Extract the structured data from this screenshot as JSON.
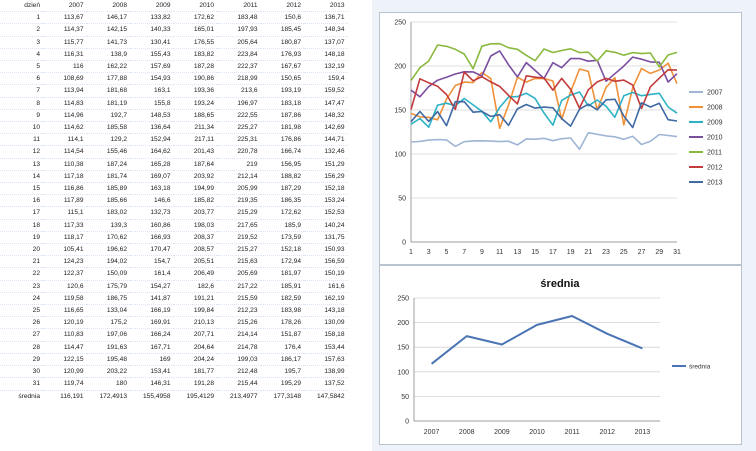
{
  "table": {
    "header": [
      "dzień",
      "2007",
      "2008",
      "2009",
      "2010",
      "2011",
      "2012",
      "2013"
    ],
    "rows": [
      [
        "1",
        "113,67",
        "146,17",
        "133,82",
        "172,62",
        "183,48",
        "150,6",
        "136,71"
      ],
      [
        "2",
        "114,37",
        "142,15",
        "140,33",
        "165,01",
        "197,93",
        "185,45",
        "148,34"
      ],
      [
        "3",
        "115,77",
        "141,73",
        "130,41",
        "176,55",
        "205,64",
        "180,87",
        "137,07"
      ],
      [
        "4",
        "116,31",
        "138,9",
        "155,43",
        "183,82",
        "223,84",
        "176,93",
        "148,18"
      ],
      [
        "5",
        "116",
        "162,22",
        "157,69",
        "187,28",
        "222,37",
        "167,67",
        "132,19"
      ],
      [
        "6",
        "108,69",
        "177,88",
        "154,93",
        "190,86",
        "218,99",
        "150,65",
        "159,4"
      ],
      [
        "7",
        "113,94",
        "181,68",
        "163,1",
        "193,36",
        "213,6",
        "193,19",
        "159,52"
      ],
      [
        "8",
        "114,83",
        "181,19",
        "155,8",
        "193,24",
        "196,97",
        "183,18",
        "147,47"
      ],
      [
        "9",
        "114,96",
        "192,7",
        "148,53",
        "188,65",
        "222,55",
        "187,86",
        "148,32"
      ],
      [
        "10",
        "114,62",
        "185,58",
        "136,64",
        "211,34",
        "225,27",
        "181,98",
        "142,69"
      ],
      [
        "11",
        "114,1",
        "129,2",
        "152,94",
        "217,11",
        "225,31",
        "176,86",
        "144,71"
      ],
      [
        "12",
        "114,54",
        "155,46",
        "164,62",
        "201,43",
        "220,78",
        "166,74",
        "132,46"
      ],
      [
        "13",
        "110,38",
        "187,24",
        "165,28",
        "187,64",
        "219",
        "156,95",
        "151,29"
      ],
      [
        "14",
        "117,18",
        "181,74",
        "169,07",
        "203,92",
        "212,14",
        "188,82",
        "156,29"
      ],
      [
        "15",
        "116,86",
        "185,89",
        "163,18",
        "194,99",
        "205,99",
        "187,29",
        "152,18"
      ],
      [
        "16",
        "117,89",
        "185,66",
        "146,6",
        "185,82",
        "219,35",
        "186,35",
        "153,24"
      ],
      [
        "17",
        "115,1",
        "183,02",
        "132,73",
        "203,77",
        "215,29",
        "172,62",
        "152,53"
      ],
      [
        "18",
        "117,33",
        "139,3",
        "160,86",
        "198,03",
        "217,65",
        "185,9",
        "140,24"
      ],
      [
        "19",
        "118,17",
        "170,62",
        "166,93",
        "208,37",
        "219,52",
        "173,59",
        "131,75"
      ],
      [
        "20",
        "105,41",
        "196,62",
        "170,47",
        "208,57",
        "215,27",
        "152,18",
        "150,93"
      ],
      [
        "21",
        "124,23",
        "194,02",
        "154,7",
        "205,51",
        "215,63",
        "172,94",
        "156,59"
      ],
      [
        "22",
        "122,37",
        "150,09",
        "161,4",
        "206,49",
        "205,69",
        "181,97",
        "150,19"
      ],
      [
        "23",
        "120,6",
        "175,79",
        "154,27",
        "182,6",
        "217,22",
        "185,91",
        "161,6"
      ],
      [
        "24",
        "119,58",
        "186,75",
        "141,87",
        "191,21",
        "215,59",
        "182,59",
        "162,19"
      ],
      [
        "25",
        "116,65",
        "133,04",
        "166,19",
        "199,84",
        "212,23",
        "183,98",
        "143,18"
      ],
      [
        "26",
        "120,19",
        "175,2",
        "169,91",
        "210,13",
        "215,26",
        "178,26",
        "130,09"
      ],
      [
        "27",
        "110,83",
        "197,06",
        "166,24",
        "207,71",
        "214,14",
        "151,87",
        "158,18"
      ],
      [
        "28",
        "114,47",
        "191,63",
        "167,71",
        "204,64",
        "214,78",
        "176,4",
        "153,44"
      ],
      [
        "29",
        "122,15",
        "195,48",
        "169",
        "204,24",
        "199,03",
        "186,17",
        "157,63"
      ],
      [
        "30",
        "120,99",
        "203,22",
        "153,41",
        "181,77",
        "212,48",
        "195,7",
        "138,99"
      ],
      [
        "31",
        "119,74",
        "180",
        "146,31",
        "191,28",
        "215,44",
        "195,29",
        "137,52"
      ]
    ],
    "average": [
      "średnia",
      "116,191",
      "172,4913",
      "155,4958",
      "195,4129",
      "213,4977",
      "177,3148",
      "147,5842"
    ]
  },
  "chart_data": [
    {
      "type": "line",
      "x": [
        1,
        2,
        3,
        4,
        5,
        6,
        7,
        8,
        9,
        10,
        11,
        12,
        13,
        14,
        15,
        16,
        17,
        18,
        19,
        20,
        21,
        22,
        23,
        24,
        25,
        26,
        27,
        28,
        29,
        30,
        31
      ],
      "x_tick_labels": [
        "1",
        "3",
        "5",
        "7",
        "9",
        "11",
        "13",
        "15",
        "17",
        "19",
        "21",
        "23",
        "25",
        "27",
        "29",
        "31"
      ],
      "ylim": [
        0,
        250
      ],
      "y_ticks": [
        "0",
        "50",
        "100",
        "150",
        "200",
        "250"
      ],
      "grid": true,
      "legend_position": "right",
      "series": [
        {
          "name": "2007",
          "color": "#9fb5d4",
          "values": [
            113.67,
            114.37,
            115.77,
            116.31,
            116,
            108.69,
            113.94,
            114.83,
            114.96,
            114.62,
            114.1,
            114.54,
            110.38,
            117.18,
            116.86,
            117.89,
            115.1,
            117.33,
            118.17,
            105.41,
            124.23,
            122.37,
            120.6,
            119.58,
            116.65,
            120.19,
            110.83,
            114.47,
            122.15,
            120.99,
            119.74
          ]
        },
        {
          "name": "2008",
          "color": "#f0913a",
          "values": [
            146.17,
            142.15,
            141.73,
            138.9,
            162.22,
            177.88,
            181.68,
            181.19,
            192.7,
            185.58,
            129.2,
            155.46,
            187.24,
            181.74,
            185.89,
            185.66,
            183.02,
            139.3,
            170.62,
            196.62,
            194.02,
            150.09,
            175.79,
            186.75,
            133.04,
            175.2,
            197.06,
            191.63,
            195.48,
            203.22,
            180
          ]
        },
        {
          "name": "2009",
          "color": "#2eb3c6",
          "values": [
            133.82,
            140.33,
            130.41,
            155.43,
            157.69,
            154.93,
            163.1,
            155.8,
            148.53,
            136.64,
            152.94,
            164.62,
            165.28,
            169.07,
            163.18,
            146.6,
            132.73,
            160.86,
            166.93,
            170.47,
            154.7,
            161.4,
            154.27,
            141.87,
            166.19,
            169.91,
            166.24,
            167.71,
            169,
            153.41,
            146.31
          ]
        },
        {
          "name": "2010",
          "color": "#7b4fa0",
          "values": [
            172.62,
            165.01,
            176.55,
            183.82,
            187.28,
            190.86,
            193.36,
            193.24,
            188.65,
            211.34,
            217.11,
            201.43,
            187.64,
            203.92,
            194.99,
            185.82,
            203.77,
            198.03,
            208.37,
            208.57,
            205.51,
            206.49,
            182.6,
            191.21,
            199.84,
            210.13,
            207.71,
            204.64,
            204.24,
            181.77,
            191.28
          ]
        },
        {
          "name": "2011",
          "color": "#8ab93e",
          "values": [
            183.48,
            197.93,
            205.64,
            223.84,
            222.37,
            218.99,
            213.6,
            196.97,
            222.55,
            225.27,
            225.31,
            220.78,
            219,
            212.14,
            205.99,
            219.35,
            215.29,
            217.65,
            219.52,
            215.27,
            215.63,
            205.69,
            217.22,
            215.59,
            212.23,
            215.26,
            214.14,
            214.78,
            199.03,
            212.48,
            215.44
          ]
        },
        {
          "name": "2012",
          "color": "#c33b3b",
          "values": [
            150.6,
            185.45,
            180.87,
            176.93,
            167.67,
            150.65,
            193.19,
            183.18,
            187.86,
            181.98,
            176.86,
            166.74,
            156.95,
            188.82,
            187.29,
            186.35,
            172.62,
            185.9,
            173.59,
            152.18,
            172.94,
            181.97,
            185.91,
            182.59,
            183.98,
            178.26,
            151.87,
            176.4,
            186.17,
            195.7,
            195.29
          ]
        },
        {
          "name": "2013",
          "color": "#3f6aa3",
          "values": [
            136.71,
            148.34,
            137.07,
            148.18,
            132.19,
            159.4,
            159.52,
            147.47,
            148.32,
            142.69,
            144.71,
            132.46,
            151.29,
            156.29,
            152.18,
            153.24,
            152.53,
            140.24,
            131.75,
            150.93,
            156.59,
            150.19,
            161.6,
            162.19,
            143.18,
            130.09,
            158.18,
            153.44,
            157.63,
            138.99,
            137.52
          ]
        }
      ]
    },
    {
      "type": "line",
      "title": "średnia",
      "categories": [
        "2007",
        "2008",
        "2009",
        "2010",
        "2011",
        "2012",
        "2013"
      ],
      "ylim": [
        0,
        250
      ],
      "y_ticks": [
        "0",
        "50",
        "100",
        "150",
        "200",
        "250"
      ],
      "grid": true,
      "legend_position": "right",
      "series": [
        {
          "name": "średnia",
          "color": "#4a74b4",
          "values": [
            116.191,
            172.4913,
            155.4958,
            195.4129,
            213.4977,
            177.3148,
            147.5842
          ]
        }
      ]
    }
  ]
}
